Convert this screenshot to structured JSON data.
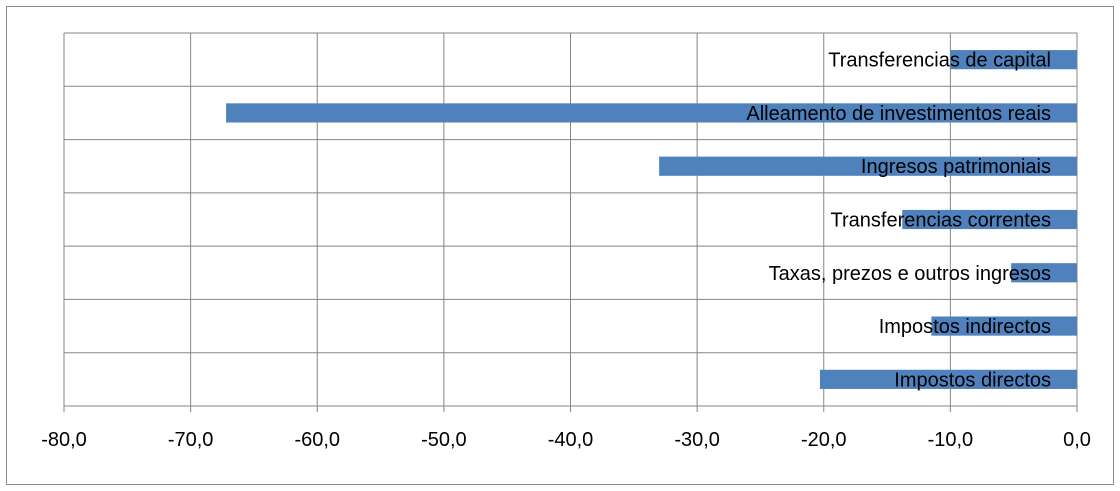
{
  "chart_data": {
    "type": "bar",
    "orientation": "horizontal",
    "title": "",
    "xlabel": "",
    "ylabel": "",
    "xlim": [
      -80,
      0
    ],
    "x_ticks": [
      "-80,0",
      "-70,0",
      "-60,0",
      "-50,0",
      "-40,0",
      "-30,0",
      "-20,0",
      "-10,0",
      "0,0"
    ],
    "categories": [
      "Transferencias de capital",
      "Alleamento de investimentos reais",
      "Ingresos patrimoniais",
      "Transferencias correntes",
      "Taxas, prezos e outros ingresos",
      "Impostos indirectos",
      "Impostos directos"
    ],
    "values": [
      -10.0,
      -67.2,
      -33.0,
      -13.8,
      -5.2,
      -11.5,
      -20.3
    ],
    "bar_color": "#4f81bd",
    "grid": true,
    "legend": "none"
  }
}
